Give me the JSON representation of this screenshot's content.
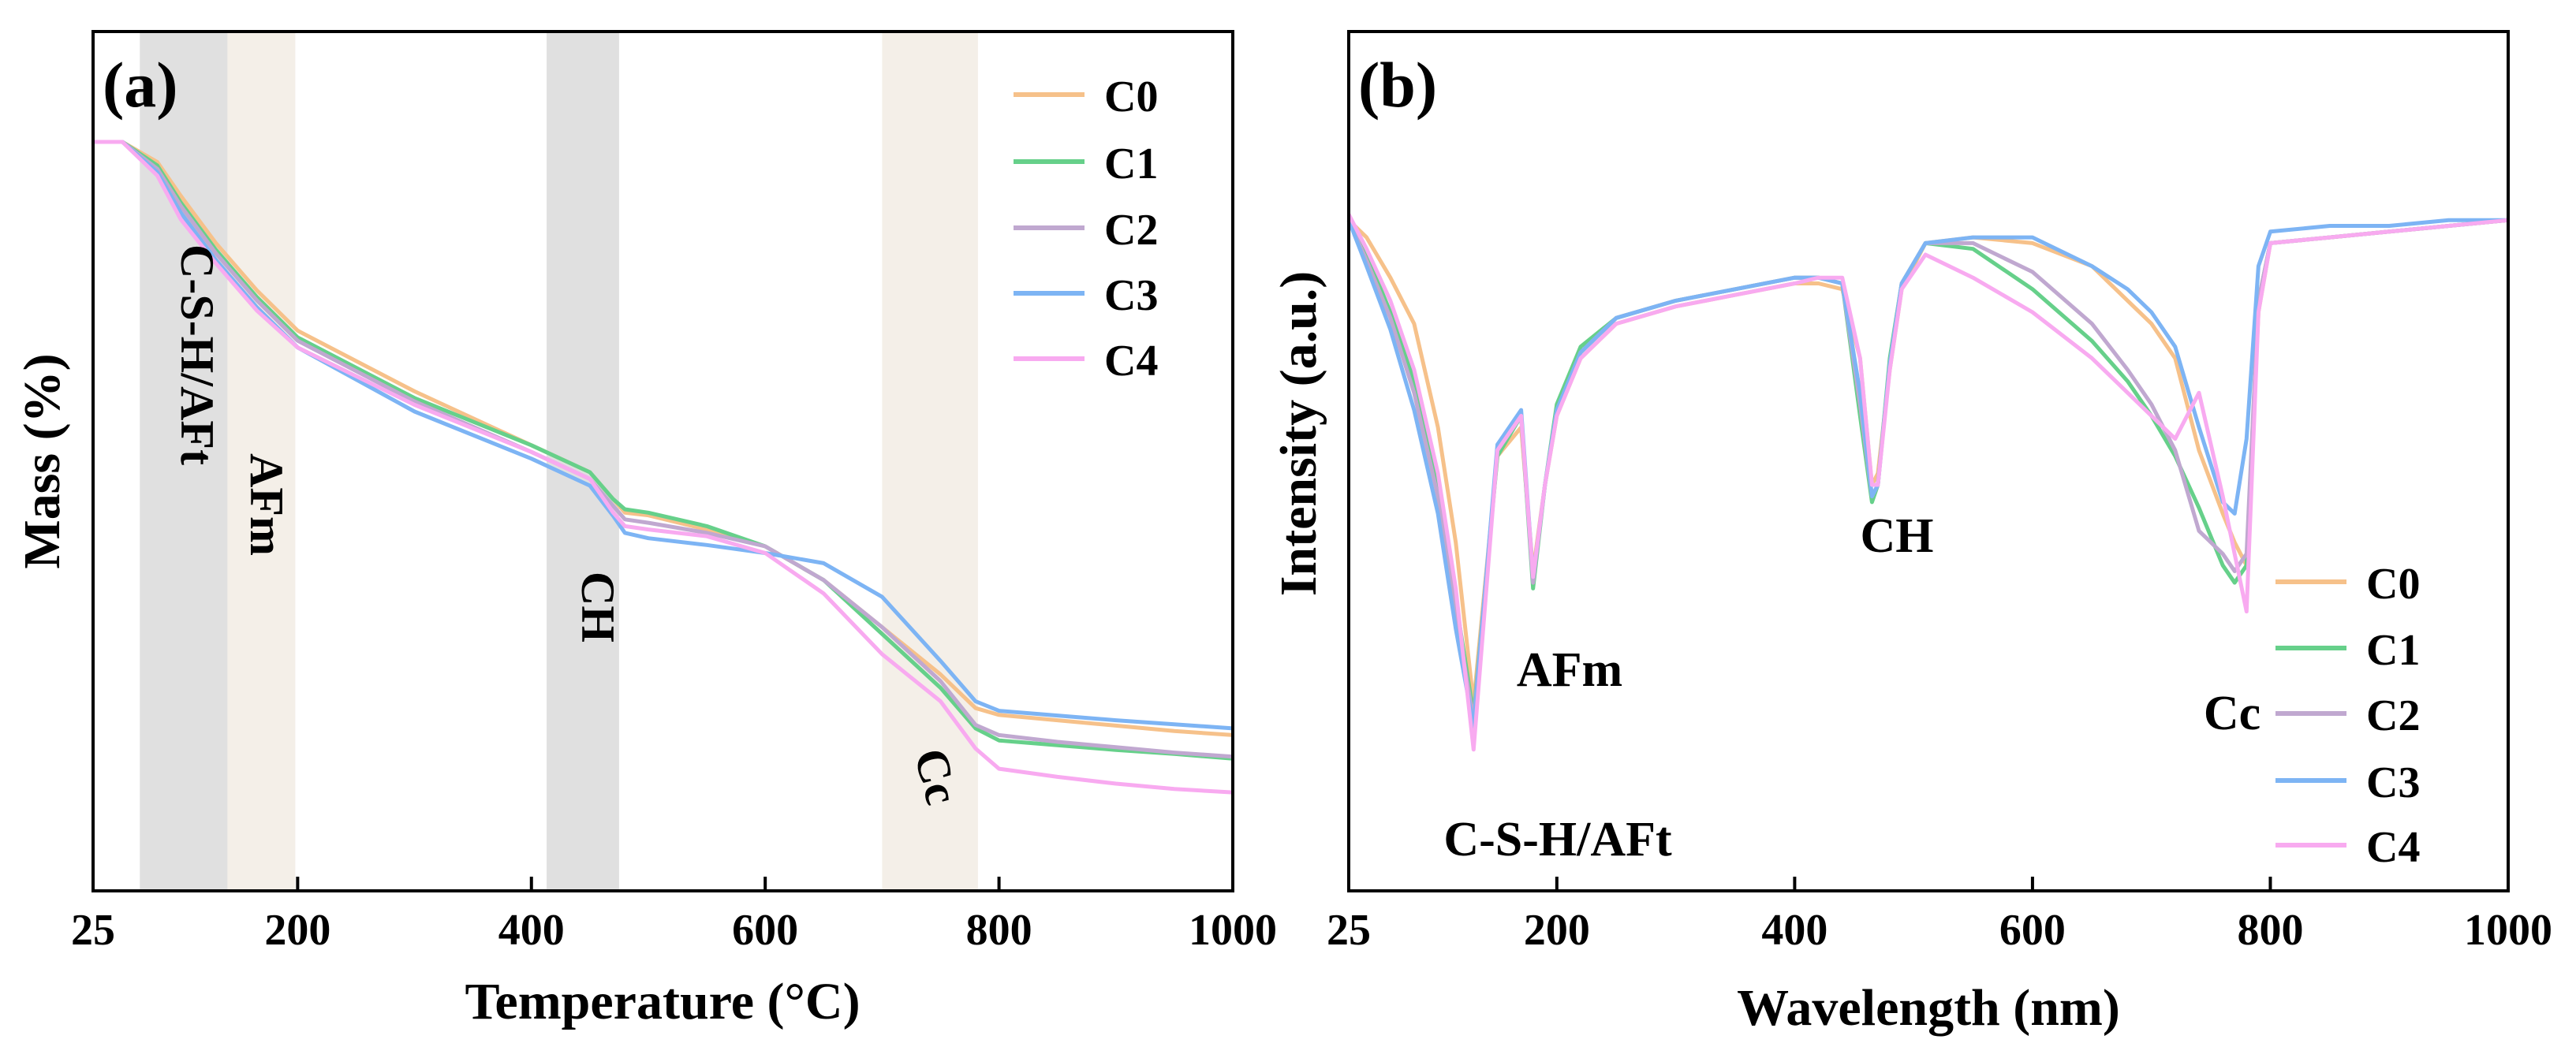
{
  "chart_data": [
    {
      "panel_label": "(a)",
      "type": "line",
      "title": "",
      "xlabel": "Temperature (°C)",
      "ylabel": "Mass (%)",
      "xlim": [
        25,
        1000
      ],
      "ylim": [
        0,
        100
      ],
      "x_ticks": [
        25,
        200,
        400,
        600,
        800,
        1000
      ],
      "y_ticks": [],
      "legend_position": "top-right",
      "shaded_regions": [
        {
          "x0": 65,
          "x1": 140,
          "color": "#e0e0e0",
          "label": "C-S-H/AFt"
        },
        {
          "x0": 140,
          "x1": 198,
          "color": "#f4efe8",
          "label": "AFm"
        },
        {
          "x0": 413,
          "x1": 475,
          "color": "#e0e0e0",
          "label": "CH"
        },
        {
          "x0": 700,
          "x1": 782,
          "color": "#f4efe8",
          "label": "Cc"
        }
      ],
      "series": [
        {
          "name": "C0",
          "color": "#f6c18a",
          "x": [
            25,
            50,
            80,
            100,
            130,
            165,
            200,
            300,
            400,
            450,
            470,
            480,
            500,
            550,
            600,
            650,
            700,
            750,
            780,
            800,
            850,
            900,
            950,
            1000
          ],
          "y": [
            100,
            100,
            97,
            92,
            85,
            78,
            72,
            63,
            55,
            51,
            47,
            45,
            44.6,
            42.5,
            40,
            35,
            28,
            21,
            16,
            15,
            14.2,
            13.4,
            12.6,
            12
          ]
        },
        {
          "name": "C1",
          "color": "#66d08a",
          "x": [
            25,
            50,
            80,
            100,
            130,
            165,
            200,
            300,
            400,
            450,
            470,
            480,
            500,
            550,
            600,
            650,
            700,
            750,
            780,
            800,
            850,
            900,
            950,
            1000
          ],
          "y": [
            100,
            100,
            96.5,
            91,
            84,
            77,
            71,
            62,
            55,
            51,
            47,
            45.5,
            45,
            43,
            40,
            35,
            27,
            19,
            13,
            11.2,
            10.5,
            9.8,
            9.2,
            8.5
          ]
        },
        {
          "name": "C2",
          "color": "#c0a8d0",
          "x": [
            25,
            50,
            80,
            100,
            130,
            165,
            200,
            300,
            400,
            450,
            470,
            480,
            500,
            550,
            600,
            650,
            700,
            750,
            780,
            800,
            850,
            900,
            950,
            1000
          ],
          "y": [
            100,
            100,
            96,
            90.5,
            83.5,
            76.5,
            70.5,
            61.5,
            54,
            50,
            46,
            44,
            43.5,
            42,
            40,
            35,
            28,
            20,
            13.5,
            12,
            11,
            10.2,
            9.4,
            8.8
          ]
        },
        {
          "name": "C3",
          "color": "#7db4f4",
          "x": [
            25,
            50,
            80,
            100,
            130,
            165,
            200,
            300,
            400,
            450,
            470,
            480,
            500,
            550,
            600,
            650,
            700,
            750,
            780,
            800,
            850,
            900,
            950,
            1000
          ],
          "y": [
            100,
            100,
            95.5,
            89.5,
            82.5,
            75.5,
            69.5,
            60,
            53,
            49,
            44.5,
            42,
            41.2,
            40.2,
            39,
            37.5,
            32.5,
            23,
            17,
            15.6,
            14.9,
            14.2,
            13.6,
            13
          ]
        },
        {
          "name": "C4",
          "color": "#f8aaf0",
          "x": [
            25,
            50,
            80,
            100,
            130,
            165,
            200,
            300,
            400,
            450,
            470,
            480,
            500,
            550,
            600,
            650,
            700,
            750,
            780,
            800,
            850,
            900,
            950,
            1000
          ],
          "y": [
            100,
            100,
            95,
            88.5,
            82,
            75,
            69.5,
            61,
            54,
            50,
            45,
            43,
            42.5,
            41.5,
            39,
            33,
            24,
            17,
            10,
            7,
            5.8,
            4.8,
            4,
            3.5
          ]
        }
      ]
    },
    {
      "panel_label": "(b)",
      "type": "line",
      "title": "",
      "xlabel": "Wavelength (nm)",
      "ylabel": "Intensity (a.u.)",
      "xlim": [
        25,
        1000
      ],
      "ylim": [
        0,
        100
      ],
      "x_ticks": [
        25,
        200,
        400,
        600,
        800,
        1000
      ],
      "y_ticks": [],
      "legend_position": "bottom-right",
      "annotations": [
        {
          "text": "C-S-H/AFt",
          "x": 125,
          "y": 6
        },
        {
          "text": "AFm",
          "x": 215,
          "y": 30
        },
        {
          "text": "CH",
          "x": 483,
          "y": 48
        },
        {
          "text": "Cc",
          "x": 740,
          "y": 24
        }
      ],
      "series": [
        {
          "name": "C0",
          "color": "#f6c18a",
          "x": [
            25,
            40,
            60,
            80,
            100,
            115,
            130,
            150,
            170,
            180,
            190,
            200,
            220,
            250,
            300,
            350,
            400,
            420,
            440,
            455,
            465,
            470,
            480,
            490,
            510,
            550,
            600,
            650,
            680,
            700,
            720,
            740,
            760,
            770,
            780,
            790,
            800,
            850,
            900,
            950,
            1000
          ],
          "y": [
            96,
            93,
            86,
            78,
            60,
            40,
            12,
            55,
            60,
            35,
            50,
            62,
            72,
            78,
            81,
            83,
            85,
            85,
            84,
            72,
            50,
            52,
            70,
            84,
            92,
            93,
            92,
            88,
            82,
            78,
            72,
            56,
            45,
            40,
            36,
            80,
            92,
            93,
            94,
            95,
            96
          ]
        },
        {
          "name": "C1",
          "color": "#66d08a",
          "x": [
            25,
            40,
            60,
            80,
            100,
            115,
            130,
            150,
            170,
            180,
            190,
            200,
            220,
            250,
            300,
            350,
            400,
            420,
            440,
            455,
            465,
            470,
            480,
            490,
            510,
            550,
            600,
            650,
            680,
            700,
            720,
            740,
            760,
            770,
            780,
            790,
            800,
            850,
            900,
            950,
            1000
          ],
          "y": [
            96,
            90,
            80,
            68,
            50,
            30,
            10,
            55,
            62,
            32,
            50,
            64,
            74,
            79,
            82,
            84,
            86,
            86,
            85,
            62,
            47,
            50,
            72,
            85,
            92,
            91,
            84,
            75,
            68,
            62,
            55,
            46,
            36,
            33,
            36,
            82,
            92,
            93,
            94,
            95,
            96
          ]
        },
        {
          "name": "C2",
          "color": "#c0a8d0",
          "x": [
            25,
            40,
            60,
            80,
            100,
            115,
            130,
            150,
            170,
            180,
            190,
            200,
            220,
            250,
            300,
            350,
            400,
            420,
            440,
            455,
            465,
            470,
            480,
            490,
            510,
            550,
            600,
            650,
            680,
            700,
            720,
            740,
            760,
            770,
            780,
            790,
            800,
            850,
            900,
            950,
            1000
          ],
          "y": [
            96,
            89,
            79,
            66,
            48,
            28,
            9,
            56,
            62,
            33,
            50,
            63,
            73,
            79,
            82,
            84,
            86,
            86,
            85,
            64,
            48,
            50,
            71,
            85,
            92,
            92,
            87,
            78,
            70,
            64,
            56,
            42,
            38,
            35,
            38,
            82,
            92,
            93,
            94,
            95,
            96
          ]
        },
        {
          "name": "C3",
          "color": "#7db4f4",
          "x": [
            25,
            40,
            60,
            80,
            100,
            115,
            130,
            150,
            170,
            180,
            190,
            200,
            220,
            250,
            300,
            350,
            400,
            420,
            440,
            455,
            465,
            470,
            480,
            490,
            510,
            550,
            600,
            650,
            680,
            700,
            720,
            740,
            760,
            770,
            780,
            790,
            800,
            850,
            900,
            950,
            1000
          ],
          "y": [
            96,
            88,
            77,
            63,
            45,
            25,
            8,
            57,
            63,
            34,
            50,
            63,
            73,
            79,
            82,
            84,
            86,
            86,
            85,
            66,
            48,
            50,
            71,
            85,
            92,
            93,
            93,
            88,
            84,
            80,
            74,
            60,
            47,
            45,
            58,
            88,
            94,
            95,
            95,
            96,
            96
          ]
        },
        {
          "name": "C4",
          "color": "#f8aaf0",
          "x": [
            25,
            40,
            60,
            80,
            100,
            115,
            130,
            150,
            170,
            180,
            190,
            200,
            220,
            250,
            300,
            350,
            400,
            420,
            440,
            455,
            465,
            470,
            480,
            490,
            510,
            550,
            600,
            650,
            680,
            700,
            720,
            740,
            760,
            770,
            780,
            790,
            800,
            850,
            900,
            950,
            1000
          ],
          "y": [
            97,
            91,
            82,
            70,
            52,
            32,
            4,
            56,
            62,
            34,
            50,
            62,
            72,
            78,
            81,
            83,
            85,
            86,
            86,
            72,
            50,
            50,
            70,
            84,
            90,
            86,
            80,
            72,
            66,
            62,
            58,
            66,
            48,
            38,
            28,
            80,
            92,
            93,
            94,
            95,
            96
          ]
        }
      ]
    }
  ]
}
